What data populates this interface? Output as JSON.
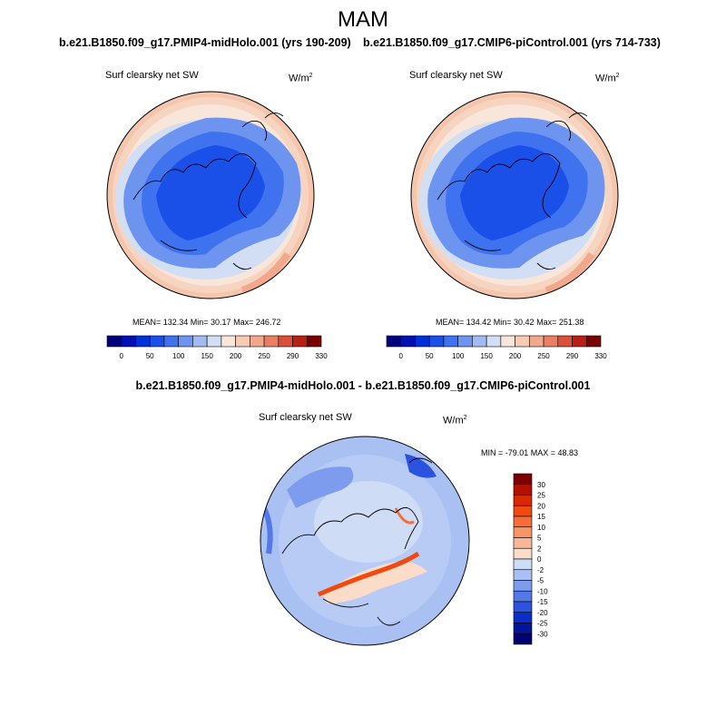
{
  "figure": {
    "season": "MAM",
    "left_subtitle": "b.e21.B1850.f09_g17.PMIP4-midHolo.001 (yrs 190-209)",
    "right_subtitle": "b.e21.B1850.f09_g17.CMIP6-piControl.001 (yrs 714-733)",
    "diff_title": "b.e21.B1850.f09_g17.PMIP4-midHolo.001 - b.e21.B1850.f09_g17.CMIP6-piControl.001"
  },
  "panels": {
    "left": {
      "variable": "Surf clearsky net SW",
      "units_base": "W/m",
      "units_exp": "2",
      "stats": "MEAN= 132.34  Min=  30.17  Max= 246.72"
    },
    "right": {
      "variable": "Surf clearsky net SW",
      "units_base": "W/m",
      "units_exp": "2",
      "stats": "MEAN= 134.42  Min=  30.42  Max= 251.38"
    },
    "diff": {
      "variable": "Surf clearsky net SW",
      "units_base": "W/m",
      "units_exp": "2",
      "stats": "MIN = -79.01 MAX =  48.83"
    }
  },
  "abs_colorbar": {
    "labels": [
      "0",
      "50",
      "100",
      "150",
      "200",
      "250",
      "290",
      "330"
    ],
    "colors": [
      "#00007a",
      "#0010b0",
      "#0030d8",
      "#1a4fe8",
      "#3f72ee",
      "#6d95f0",
      "#a0bcf2",
      "#d2def4",
      "#f8e6da",
      "#f6cbb4",
      "#f2a88c",
      "#ea7e64",
      "#d84f3a",
      "#b82016",
      "#7a0000"
    ]
  },
  "diff_colorbar": {
    "labels": [
      "30",
      "25",
      "20",
      "15",
      "10",
      "5",
      "2",
      "0",
      "-2",
      "-5",
      "-10",
      "-15",
      "-20",
      "-25",
      "-30"
    ],
    "colors": [
      "#7a0000",
      "#b41000",
      "#d82800",
      "#f04a10",
      "#f56d3a",
      "#f79468",
      "#f8b898",
      "#fbdcc8",
      "#cfdcf6",
      "#a8c0f2",
      "#7e9cee",
      "#5478e8",
      "#2c52e0",
      "#0c2ec8",
      "#00169a",
      "#000070"
    ]
  }
}
